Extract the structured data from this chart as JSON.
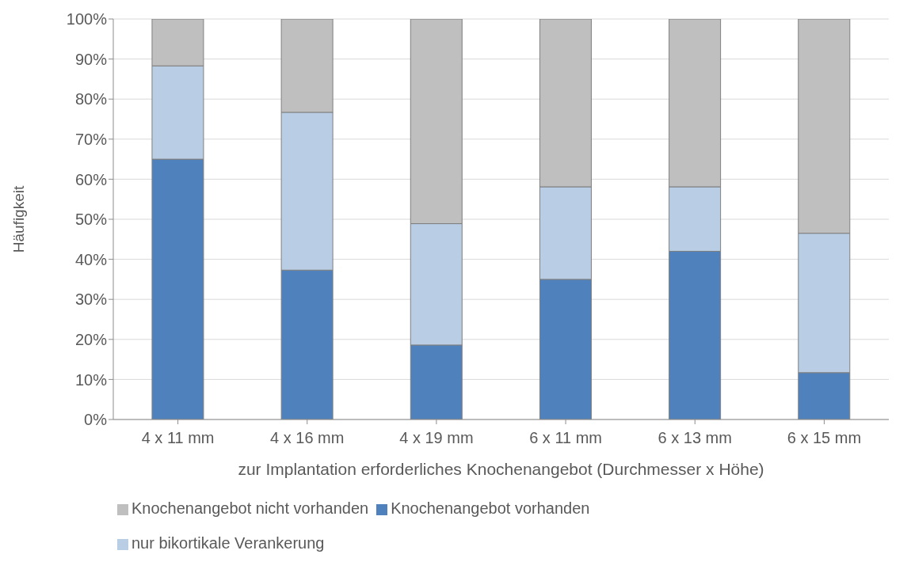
{
  "chart_data": {
    "type": "bar",
    "stacked": true,
    "xlabel": "zur Implantation erforderliches Knochenangebot (Durchmesser x Höhe)",
    "ylabel": "Häufigkeit",
    "categories": [
      "4 x 11 mm",
      "4 x 16 mm",
      "4 x 19 mm",
      "6 x 11 mm",
      "6 x 13 mm",
      "6 x 15 mm"
    ],
    "series": [
      {
        "name": "Knochenangebot vorhanden",
        "color": "#4f81bd",
        "values": [
          65,
          37.3,
          18.6,
          35,
          42,
          11.7
        ]
      },
      {
        "name": "nur bikortikale Verankerung",
        "color": "#b9cde5",
        "values": [
          23.3,
          39.4,
          30.3,
          23.1,
          16.1,
          34.8
        ]
      },
      {
        "name": "Knochenangebot nicht vorhanden",
        "color": "#bfbfbf",
        "values": [
          11.7,
          23.3,
          51.1,
          41.9,
          41.9,
          53.5
        ]
      }
    ],
    "ylim": [
      0,
      100
    ],
    "yticks": [
      {
        "value": 0,
        "label": "0%"
      },
      {
        "value": 10,
        "label": "10%"
      },
      {
        "value": 20,
        "label": "20%"
      },
      {
        "value": 30,
        "label": "30%"
      },
      {
        "value": 40,
        "label": "40%"
      },
      {
        "value": 50,
        "label": "50%"
      },
      {
        "value": 60,
        "label": "60%"
      },
      {
        "value": 70,
        "label": "70%"
      },
      {
        "value": 80,
        "label": "80%"
      },
      {
        "value": 90,
        "label": "90%"
      },
      {
        "value": 100,
        "label": "100%"
      }
    ],
    "grid": "y",
    "legend": "bottom"
  }
}
